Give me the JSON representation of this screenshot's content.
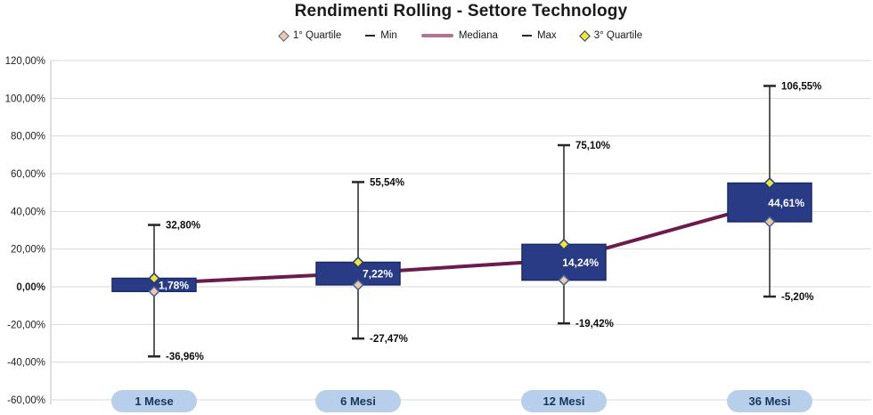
{
  "title": "Rendimenti Rolling - Settore Technology",
  "legend": {
    "items": [
      {
        "label": "1° Quartile",
        "marker": "diamond",
        "fill": "#f3c89d",
        "stroke": "#3b63a8"
      },
      {
        "label": "Min",
        "marker": "dash",
        "color": "#262626"
      },
      {
        "label": "Mediana",
        "marker": "line",
        "color": "#ad7495"
      },
      {
        "label": "Max",
        "marker": "dash",
        "color": "#262626"
      },
      {
        "label": "3° Quartile",
        "marker": "diamond",
        "fill": "#f2e437",
        "stroke": "#1f3a7a"
      }
    ]
  },
  "chart_data": {
    "type": "boxplot",
    "title": "Rendimenti Rolling - Settore Technology",
    "categories": [
      "1 Mese",
      "6 Mesi",
      "12 Mesi",
      "36 Mesi"
    ],
    "groups": [
      {
        "label": "1 Mese",
        "min": -36.96,
        "q1": -2.5,
        "median": 1.78,
        "q3": 4.5,
        "max": 32.8,
        "min_label": "-36,96%",
        "median_label": "1,78%",
        "max_label": "32,80%"
      },
      {
        "label": "6 Mesi",
        "min": -27.47,
        "q1": 1.0,
        "median": 7.22,
        "q3": 13.0,
        "max": 55.54,
        "min_label": "-27,47%",
        "median_label": "7,22%",
        "max_label": "55,54%"
      },
      {
        "label": "12 Mesi",
        "min": -19.42,
        "q1": 3.5,
        "median": 14.24,
        "q3": 22.5,
        "max": 75.1,
        "min_label": "-19,42%",
        "median_label": "14,24%",
        "max_label": "75,10%"
      },
      {
        "label": "36 Mesi",
        "min": -5.2,
        "q1": 34.5,
        "median": 44.61,
        "q3": 55.0,
        "max": 106.55,
        "min_label": "-5,20%",
        "median_label": "44,61%",
        "max_label": "106,55%"
      }
    ],
    "y_axis": {
      "ticks": [
        120,
        100,
        80,
        60,
        40,
        20,
        0,
        -20,
        -40,
        -60
      ],
      "tick_labels": [
        "120,00%",
        "100,00%",
        "80,00%",
        "60,00%",
        "40,00%",
        "20,00%",
        "0,00%",
        "-20,00%",
        "-40,00%",
        "-60,00%"
      ],
      "ylim": [
        -60,
        120
      ],
      "grid": true
    },
    "legend_position": "top"
  },
  "colors": {
    "box_fill": "#2a3b85",
    "box_stroke": "#1b2a66",
    "whisker": "#262626",
    "median_line": "#6d1a4d",
    "median_legend": "#ad7495",
    "q1_fill": "#f3c89d",
    "q1_stroke": "#3b63a8",
    "q3_fill": "#f2e437",
    "q3_stroke": "#1f3a7a",
    "grid": "#d9d9d9",
    "axis_line": "#bfbfbf",
    "tick_text": "#1f1f1f",
    "data_label": "#0d0d0d",
    "box_label": "#ffffff",
    "pill_fill": "#b7cfea",
    "pill_text": "#17365e"
  }
}
